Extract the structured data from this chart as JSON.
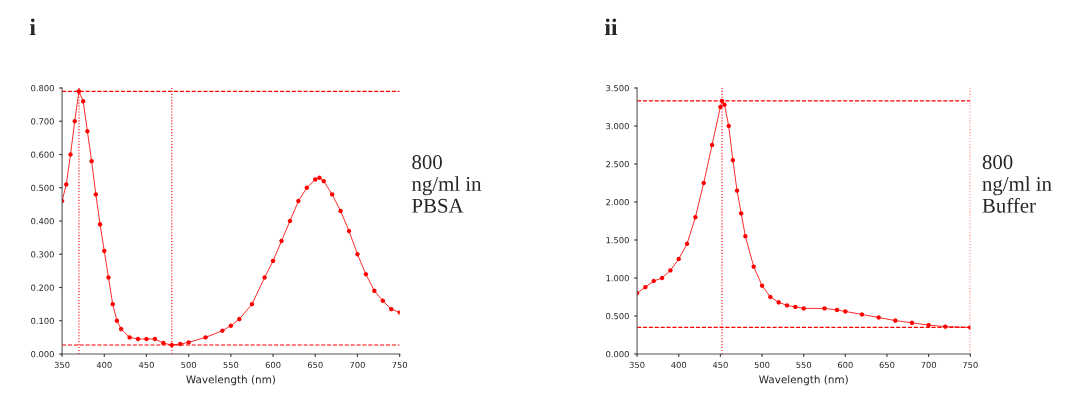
{
  "chart_data": [
    {
      "type": "line",
      "title": "i",
      "xlabel": "Wavelength (nm)",
      "annotations": [
        "800\nng/ml in\nPBSA"
      ],
      "marker": "circle",
      "legend": false,
      "grid": false,
      "xlim": [
        350,
        750
      ],
      "xticks": [
        350,
        400,
        450,
        500,
        550,
        600,
        650,
        700,
        750
      ],
      "ylim": [
        0,
        0.8
      ],
      "yticks": [
        {
          "value": 0,
          "label": "0.000"
        },
        {
          "value": 0.1,
          "label": "0.100"
        },
        {
          "value": 0.2,
          "label": "0.200"
        },
        {
          "value": 0.3,
          "label": "0.300"
        },
        {
          "value": 0.4,
          "label": "0.400"
        },
        {
          "value": 0.5,
          "label": "0.500"
        },
        {
          "value": 0.6,
          "label": "0.600"
        },
        {
          "value": 0.7,
          "label": "0.700"
        },
        {
          "value": 0.8,
          "label": "0.800"
        }
      ],
      "ref_lines": [
        {
          "axis": "x",
          "value": 370,
          "color": "#ff0000",
          "line_style": "dotted"
        },
        {
          "axis": "y",
          "value": 0.79,
          "color": "#ff0000",
          "line_style": "dashed"
        },
        {
          "axis": "y",
          "value": 0.027,
          "color": "#ff0000",
          "line_style": "dashed"
        },
        {
          "axis": "x",
          "value": 480,
          "color": "#ff0000",
          "line_style": "dotted"
        }
      ],
      "series": [
        {
          "color": "#ff0000",
          "x": [
            350,
            355,
            360,
            365,
            370,
            375,
            380,
            385,
            390,
            395,
            400,
            405,
            410,
            415,
            420,
            430,
            440,
            450,
            460,
            470,
            480,
            490,
            500,
            520,
            540,
            550,
            560,
            575,
            590,
            600,
            610,
            620,
            630,
            640,
            650,
            655,
            660,
            670,
            680,
            690,
            700,
            710,
            720,
            730,
            740,
            750
          ],
          "values": [
            0.46,
            0.51,
            0.6,
            0.7,
            0.79,
            0.76,
            0.67,
            0.58,
            0.48,
            0.39,
            0.31,
            0.23,
            0.15,
            0.1,
            0.075,
            0.05,
            0.045,
            0.045,
            0.045,
            0.033,
            0.027,
            0.03,
            0.035,
            0.05,
            0.07,
            0.085,
            0.105,
            0.15,
            0.23,
            0.28,
            0.34,
            0.4,
            0.46,
            0.5,
            0.525,
            0.53,
            0.52,
            0.48,
            0.43,
            0.37,
            0.3,
            0.24,
            0.19,
            0.16,
            0.135,
            0.125
          ]
        }
      ]
    },
    {
      "type": "line",
      "title": "ii",
      "xlabel": "Wavelength (nm)",
      "annotations": [
        "800\nng/ml in\nBuffer"
      ],
      "marker": "circle",
      "legend": false,
      "grid": false,
      "xlim": [
        350,
        750
      ],
      "xticks": [
        350,
        400,
        450,
        500,
        550,
        600,
        650,
        700,
        750
      ],
      "ylim": [
        0,
        3.5
      ],
      "yticks": [
        {
          "value": 0,
          "label": "0.000"
        },
        {
          "value": 0.5,
          "label": "0.500"
        },
        {
          "value": 1,
          "label": "1.000"
        },
        {
          "value": 1.5,
          "label": "1.500"
        },
        {
          "value": 2,
          "label": "2.000"
        },
        {
          "value": 2.5,
          "label": "2.500"
        },
        {
          "value": 3,
          "label": "3.000"
        },
        {
          "value": 3.5,
          "label": "3.500"
        }
      ],
      "ref_lines": [
        {
          "axis": "x",
          "value": 452,
          "color": "#ff0000",
          "line_style": "dotted"
        },
        {
          "axis": "y",
          "value": 3.33,
          "color": "#ff0000",
          "line_style": "dashed"
        },
        {
          "axis": "y",
          "value": 0.35,
          "color": "#ff0000",
          "line_style": "dashed"
        },
        {
          "axis": "x",
          "value": 750,
          "color": "#ff0000",
          "line_style": "dotted"
        }
      ],
      "series": [
        {
          "color": "#ff0000",
          "x": [
            350,
            360,
            370,
            380,
            390,
            400,
            410,
            420,
            430,
            440,
            450,
            452,
            455,
            460,
            465,
            470,
            475,
            480,
            490,
            500,
            510,
            520,
            530,
            540,
            550,
            575,
            590,
            600,
            620,
            640,
            660,
            680,
            700,
            720,
            750
          ],
          "values": [
            0.8,
            0.88,
            0.96,
            1.0,
            1.1,
            1.25,
            1.45,
            1.8,
            2.25,
            2.75,
            3.25,
            3.33,
            3.28,
            3.0,
            2.55,
            2.15,
            1.85,
            1.55,
            1.15,
            0.9,
            0.75,
            0.68,
            0.64,
            0.62,
            0.6,
            0.6,
            0.58,
            0.56,
            0.52,
            0.48,
            0.44,
            0.41,
            0.38,
            0.36,
            0.35
          ]
        }
      ]
    }
  ]
}
